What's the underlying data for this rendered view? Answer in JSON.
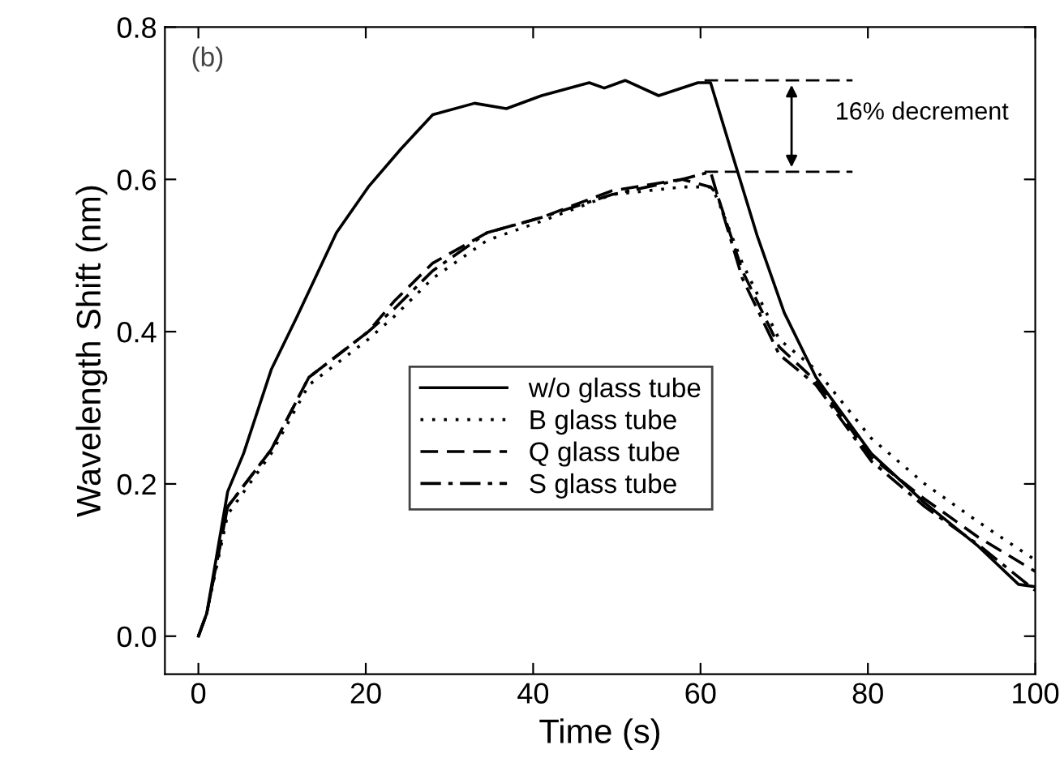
{
  "chart_data": {
    "type": "line",
    "xlabel": "Time (s)",
    "ylabel": "Wavelength Shift (nm)",
    "xlim": [
      -4,
      100
    ],
    "xticks": [
      0,
      20,
      40,
      60,
      80,
      100
    ],
    "ylim": [
      -0.05,
      0.8
    ],
    "yticks": [
      {
        "value": 0,
        "label": "0.0"
      },
      {
        "value": 0.2,
        "label": "0.2"
      },
      {
        "value": 0.4,
        "label": "0.4"
      },
      {
        "value": 0.6,
        "label": "0.6"
      },
      {
        "value": 0.8,
        "label": "0.8"
      }
    ],
    "grid": false,
    "legend": "center",
    "marker": "none",
    "series": [
      {
        "name": "w/o glass tube",
        "color": "#000000",
        "line_style": "solid",
        "x": [
          0,
          1,
          3.5,
          5.4,
          8.7,
          11.8,
          16.5,
          20.3,
          24.2,
          28,
          33,
          36.8,
          41,
          46.7,
          48.5,
          51,
          55,
          59.7,
          61.2,
          63.6,
          66.8,
          70,
          73.8,
          80.4,
          86.8,
          93.2,
          98,
          100
        ],
        "values": [
          0,
          0.03,
          0.19,
          0.24,
          0.35,
          0.42,
          0.53,
          0.59,
          0.64,
          0.685,
          0.7,
          0.693,
          0.71,
          0.727,
          0.72,
          0.73,
          0.71,
          0.727,
          0.727,
          0.64,
          0.525,
          0.425,
          0.34,
          0.24,
          0.175,
          0.118,
          0.068,
          0.065
        ]
      },
      {
        "name": "B glass tube",
        "color": "#000000",
        "line_style": "dotted",
        "x": [
          0,
          1,
          3.5,
          8.7,
          13.2,
          20.3,
          23.4,
          28,
          34.5,
          41,
          49.4,
          57.8,
          61.2,
          62,
          65,
          69.4,
          73.8,
          80.4,
          86.8,
          93.2,
          100
        ],
        "values": [
          0,
          0.03,
          0.16,
          0.24,
          0.33,
          0.39,
          0.42,
          0.47,
          0.52,
          0.545,
          0.58,
          0.59,
          0.59,
          0.575,
          0.49,
          0.39,
          0.35,
          0.26,
          0.2,
          0.15,
          0.1
        ]
      },
      {
        "name": "Q glass tube",
        "color": "#000000",
        "line_style": "dashed",
        "x": [
          0,
          1,
          3.5,
          8.7,
          13.2,
          20.3,
          23.4,
          28,
          34.5,
          41,
          49.4,
          57.8,
          61.2,
          62,
          65,
          69.4,
          73.8,
          80.4,
          86.8,
          93.2,
          100
        ],
        "values": [
          0,
          0.03,
          0.17,
          0.245,
          0.34,
          0.4,
          0.44,
          0.49,
          0.53,
          0.55,
          0.585,
          0.6,
          0.59,
          0.58,
          0.48,
          0.38,
          0.335,
          0.235,
          0.18,
          0.13,
          0.085
        ]
      },
      {
        "name": "S glass tube",
        "color": "#000000",
        "line_style": "dashdot",
        "x": [
          0,
          1,
          3.5,
          8.7,
          13.2,
          20.3,
          23.4,
          28,
          34.5,
          41,
          49.4,
          57.8,
          61.2,
          62,
          65,
          69.4,
          73.8,
          80.4,
          86.8,
          93.2,
          100
        ],
        "values": [
          0,
          0.03,
          0.17,
          0.245,
          0.34,
          0.4,
          0.43,
          0.48,
          0.53,
          0.55,
          0.58,
          0.6,
          0.61,
          0.58,
          0.47,
          0.37,
          0.33,
          0.23,
          0.17,
          0.12,
          0.06
        ]
      }
    ],
    "ref_lines": [
      {
        "axis": "y",
        "value": 0.73,
        "line_style": "dashed",
        "color": "#000000"
      },
      {
        "axis": "y",
        "value": 0.61,
        "line_style": "dashed",
        "color": "#000000"
      }
    ],
    "annotations": [
      "(b)",
      "16% decrement"
    ]
  }
}
